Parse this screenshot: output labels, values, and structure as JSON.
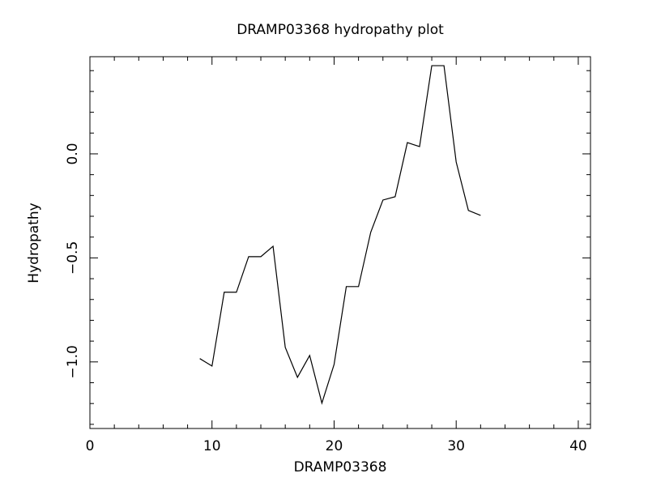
{
  "chart_data": {
    "type": "line",
    "title": "DRAMP03368 hydropathy plot",
    "xlabel": "DRAMP03368",
    "ylabel": "Hydropathy",
    "x": [
      9,
      10,
      11,
      12,
      13,
      14,
      15,
      16,
      17,
      18,
      19,
      20,
      21,
      22,
      23,
      24,
      25,
      26,
      27,
      28,
      29,
      30,
      31,
      32
    ],
    "series": [
      {
        "color": "#000000",
        "values": [
          -0.984,
          -1.02,
          -0.665,
          -0.665,
          -0.494,
          -0.494,
          -0.444,
          -0.93,
          -1.074,
          -0.969,
          -1.198,
          -1.012,
          -0.638,
          -0.638,
          -0.377,
          -0.222,
          -0.206,
          0.054,
          0.035,
          0.424,
          0.424,
          -0.039,
          -0.272,
          -0.296
        ]
      }
    ],
    "xlim": [
      0,
      41
    ],
    "ylim": [
      -1.32,
      0.467
    ],
    "xticks": [
      0,
      10,
      20,
      30,
      40
    ],
    "xticks_minor": [
      2,
      4,
      6,
      8,
      12,
      14,
      16,
      18,
      22,
      24,
      26,
      28,
      32,
      34,
      36,
      38
    ],
    "yticks": [
      {
        "value": -1,
        "label": "−1.0"
      },
      {
        "value": -0.5,
        "label": "−0.5"
      },
      {
        "value": 0,
        "label": "0.0"
      }
    ],
    "yticks_minor": [
      -1.3,
      -1.2,
      -1.1,
      -0.9,
      -0.8,
      -0.7,
      -0.6,
      -0.4,
      -0.3,
      -0.2,
      -0.1,
      0.1,
      0.2,
      0.3,
      0.4
    ]
  }
}
